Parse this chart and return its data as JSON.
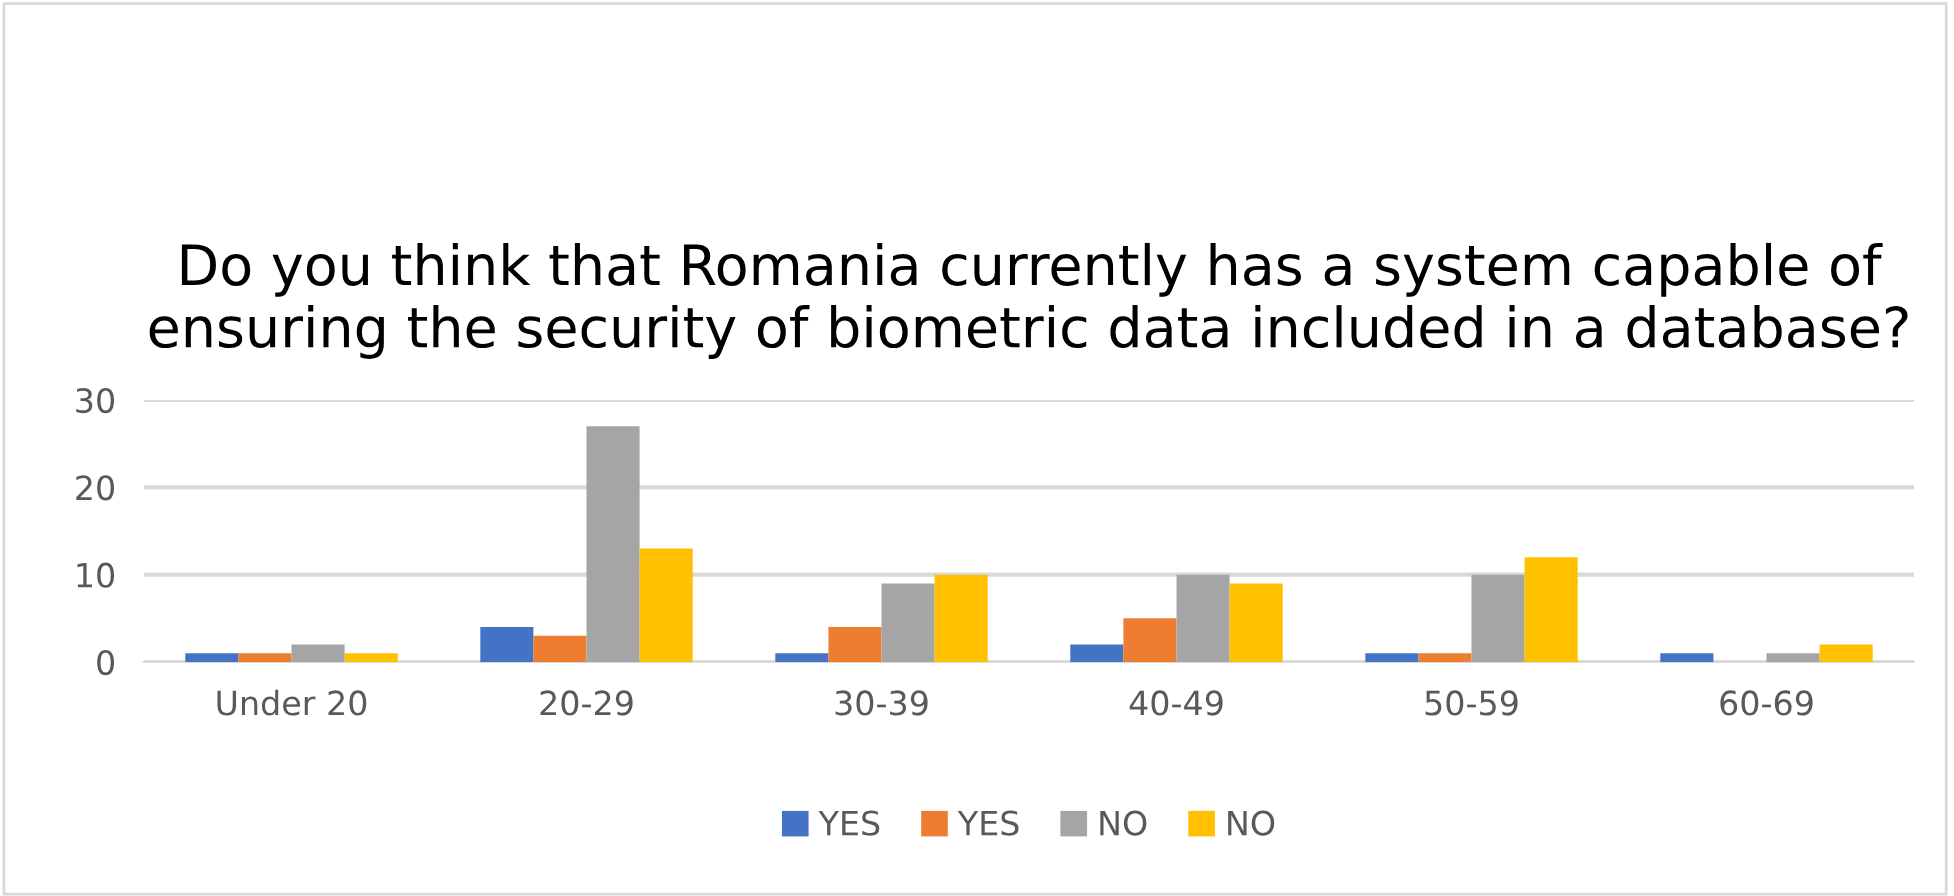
{
  "chart_data": {
    "type": "bar",
    "title": "Do you think that Romania currently has a system capable of ensuring the security of biometric data included in a database?",
    "categories": [
      "Under 20",
      "20-29",
      "30-39",
      "40-49",
      "50-59",
      "60-69"
    ],
    "series": [
      {
        "name": "YES",
        "color": "#4472c4",
        "values": [
          1,
          4,
          1,
          2,
          1,
          1
        ]
      },
      {
        "name": "YES",
        "color": "#ed7d31",
        "values": [
          1,
          3,
          4,
          5,
          1,
          0
        ]
      },
      {
        "name": "NO",
        "color": "#a5a5a5",
        "values": [
          2,
          27,
          9,
          10,
          10,
          1
        ]
      },
      {
        "name": "NO",
        "color": "#ffc000",
        "values": [
          1,
          13,
          10,
          9,
          12,
          2
        ]
      }
    ],
    "ylim": [
      0,
      30
    ],
    "yticks": [
      0,
      10,
      20,
      30
    ],
    "grid": "y",
    "legend": "bottom"
  }
}
